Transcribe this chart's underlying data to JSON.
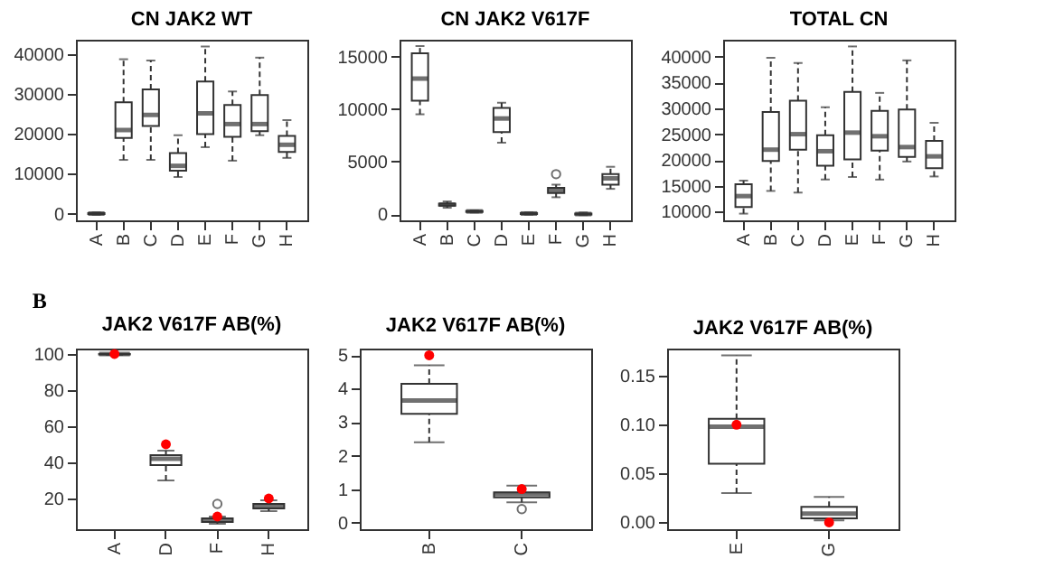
{
  "chart_data": [
    {
      "type": "box",
      "color": "#333333",
      "title": "CN JAK2 WT",
      "categories": [
        "A",
        "B",
        "C",
        "D",
        "E",
        "F",
        "G",
        "H"
      ],
      "ylim": [
        -1700,
        43700
      ],
      "yticks": [
        0,
        10000,
        20000,
        30000,
        40000
      ],
      "boxes": [
        {
          "low": -300,
          "q1": -100,
          "median": 0,
          "q3": 100,
          "high": 300
        },
        {
          "low": 13500,
          "q1": 19000,
          "median": 21000,
          "q3": 28000,
          "high": 38800
        },
        {
          "low": 13500,
          "q1": 22000,
          "median": 24800,
          "q3": 31200,
          "high": 38500
        },
        {
          "low": 9200,
          "q1": 10800,
          "median": 12000,
          "q3": 15200,
          "high": 19700
        },
        {
          "low": 16700,
          "q1": 20000,
          "median": 25200,
          "q3": 33200,
          "high": 42000
        },
        {
          "low": 13300,
          "q1": 19300,
          "median": 22500,
          "q3": 27300,
          "high": 30700
        },
        {
          "low": 19700,
          "q1": 20700,
          "median": 22500,
          "q3": 29800,
          "high": 39200
        },
        {
          "low": 14000,
          "q1": 15500,
          "median": 17300,
          "q3": 19500,
          "high": 23500
        }
      ]
    },
    {
      "type": "box",
      "color": "#333333",
      "title": "CN JAK2 V617F",
      "categories": [
        "A",
        "B",
        "C",
        "D",
        "E",
        "F",
        "G",
        "H"
      ],
      "ylim": [
        -600,
        16600
      ],
      "yticks": [
        0,
        5000,
        10000,
        15000
      ],
      "boxes": [
        {
          "low": 9500,
          "q1": 10800,
          "median": 12900,
          "q3": 15300,
          "high": 16000
        },
        {
          "low": 600,
          "q1": 800,
          "median": 900,
          "q3": 1000,
          "high": 1200
        },
        {
          "low": 150,
          "q1": 200,
          "median": 250,
          "q3": 300,
          "high": 350
        },
        {
          "low": 6800,
          "q1": 7800,
          "median": 9100,
          "q3": 10100,
          "high": 10600
        },
        {
          "low": -50,
          "q1": 0,
          "median": 50,
          "q3": 100,
          "high": 150
        },
        {
          "low": 1600,
          "q1": 2000,
          "median": 2200,
          "q3": 2500,
          "high": 2800,
          "outliers": [
            3800
          ]
        },
        {
          "low": -100,
          "q1": -50,
          "median": 0,
          "q3": 50,
          "high": 150
        },
        {
          "low": 2400,
          "q1": 2800,
          "median": 3400,
          "q3": 3800,
          "high": 4500
        }
      ]
    },
    {
      "type": "box",
      "color": "#333333",
      "title": "TOTAL CN",
      "categories": [
        "A",
        "B",
        "C",
        "D",
        "E",
        "F",
        "G",
        "H"
      ],
      "ylim": [
        8300,
        43300
      ],
      "yticks": [
        10000,
        15000,
        20000,
        25000,
        30000,
        35000,
        40000
      ],
      "boxes": [
        {
          "low": 9600,
          "q1": 10900,
          "median": 13000,
          "q3": 15300,
          "high": 16000
        },
        {
          "low": 14000,
          "q1": 19800,
          "median": 22000,
          "q3": 29300,
          "high": 39800
        },
        {
          "low": 13700,
          "q1": 22000,
          "median": 25000,
          "q3": 31500,
          "high": 38800
        },
        {
          "low": 16200,
          "q1": 18900,
          "median": 21700,
          "q3": 24800,
          "high": 30200
        },
        {
          "low": 16700,
          "q1": 20100,
          "median": 25300,
          "q3": 33200,
          "high": 42000
        },
        {
          "low": 16200,
          "q1": 21800,
          "median": 24600,
          "q3": 29500,
          "high": 33000
        },
        {
          "low": 19700,
          "q1": 20600,
          "median": 22500,
          "q3": 29800,
          "high": 39300
        },
        {
          "low": 16800,
          "q1": 18400,
          "median": 20700,
          "q3": 23700,
          "high": 27200
        }
      ]
    },
    {
      "type": "box",
      "color": "#333333",
      "title": "JAK2 V617F AB(%)",
      "annotations": [
        "B"
      ],
      "categories": [
        "A",
        "D",
        "F",
        "H"
      ],
      "ylim": [
        3,
        103
      ],
      "yticks": [
        20,
        40,
        60,
        80,
        100
      ],
      "boxes": [
        {
          "low": 99.5,
          "q1": 99.8,
          "median": 100,
          "q3": 100,
          "high": 100
        },
        {
          "low": 30,
          "q1": 38.5,
          "median": 42,
          "q3": 44,
          "high": 46.5
        },
        {
          "low": 6,
          "q1": 7,
          "median": 8,
          "q3": 9,
          "high": 10,
          "outliers": [
            17
          ]
        },
        {
          "low": 13,
          "q1": 14.5,
          "median": 15.5,
          "q3": 17,
          "high": 19
        }
      ],
      "series": [
        {
          "type": "scatter",
          "color": "#ff0000",
          "x": [
            "A",
            "D",
            "F",
            "H"
          ],
          "values": [
            100,
            50,
            10,
            20
          ]
        }
      ]
    },
    {
      "type": "box",
      "color": "#333333",
      "title": "JAK2 V617F AB(%)",
      "categories": [
        "B",
        "C"
      ],
      "ylim": [
        -0.2,
        5.2
      ],
      "yticks": [
        0,
        1,
        2,
        3,
        4,
        5
      ],
      "boxes": [
        {
          "low": 2.4,
          "q1": 3.25,
          "median": 3.65,
          "q3": 4.15,
          "high": 4.7
        },
        {
          "low": 0.6,
          "q1": 0.75,
          "median": 0.85,
          "q3": 0.9,
          "high": 1.1,
          "outliers": [
            0.4
          ]
        }
      ],
      "series": [
        {
          "type": "scatter",
          "color": "#ff0000",
          "x": [
            "B",
            "C"
          ],
          "values": [
            5,
            1
          ]
        }
      ]
    },
    {
      "type": "box",
      "color": "#333333",
      "title": "JAK2 V617F AB(%)",
      "categories": [
        "E",
        "G"
      ],
      "ylim": [
        -0.007,
        0.178
      ],
      "yticks": [
        {
          "value": 0,
          "label": "0.00"
        },
        0.05,
        {
          "value": 0.1,
          "label": "0.10"
        },
        0.15
      ],
      "boxes": [
        {
          "low": 0.03,
          "q1": 0.06,
          "median": 0.098,
          "q3": 0.106,
          "high": 0.171
        },
        {
          "low": 0.002,
          "q1": 0.004,
          "median": 0.009,
          "q3": 0.016,
          "high": 0.026
        }
      ],
      "series": [
        {
          "type": "scatter",
          "color": "#ff0000",
          "x": [
            "E",
            "G"
          ],
          "values": [
            0.1,
            0
          ]
        }
      ]
    }
  ]
}
